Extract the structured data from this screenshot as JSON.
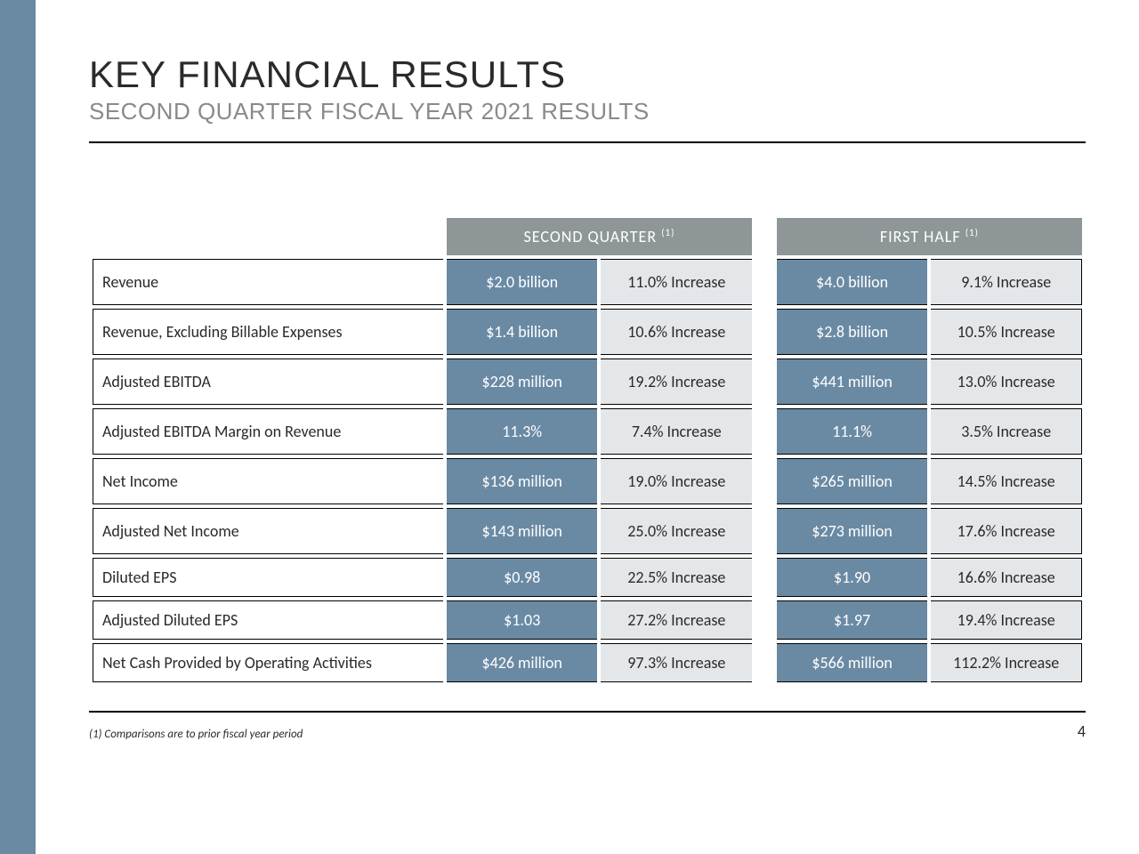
{
  "title": "KEY FINANCIAL RESULTS",
  "subtitle": "SECOND QUARTER FISCAL YEAR 2021 RESULTS",
  "headers": {
    "q2": "SECOND QUARTER",
    "h1": "FIRST HALF",
    "sup": "(1)"
  },
  "rows": [
    {
      "metric": "Revenue",
      "q2_val": "$2.0 billion",
      "q2_chg": "11.0% Increase",
      "h1_val": "$4.0 billion",
      "h1_chg": "9.1% Increase",
      "short": false
    },
    {
      "metric": "Revenue, Excluding Billable Expenses",
      "q2_val": "$1.4 billion",
      "q2_chg": "10.6% Increase",
      "h1_val": "$2.8 billion",
      "h1_chg": "10.5% Increase",
      "short": false
    },
    {
      "metric": "Adjusted EBITDA",
      "q2_val": "$228 million",
      "q2_chg": "19.2% Increase",
      "h1_val": "$441 million",
      "h1_chg": "13.0% Increase",
      "short": false
    },
    {
      "metric": "Adjusted EBITDA Margin on Revenue",
      "q2_val": "11.3%",
      "q2_chg": "7.4% Increase",
      "h1_val": "11.1%",
      "h1_chg": "3.5% Increase",
      "short": false
    },
    {
      "metric": "Net Income",
      "q2_val": "$136 million",
      "q2_chg": "19.0% Increase",
      "h1_val": "$265 million",
      "h1_chg": "14.5% Increase",
      "short": false
    },
    {
      "metric": "Adjusted Net Income",
      "q2_val": "$143 million",
      "q2_chg": "25.0% Increase",
      "h1_val": "$273 million",
      "h1_chg": "17.6% Increase",
      "short": false
    },
    {
      "metric": "Diluted EPS",
      "q2_val": "$0.98",
      "q2_chg": "22.5% Increase",
      "h1_val": "$1.90",
      "h1_chg": "16.6% Increase",
      "short": true
    },
    {
      "metric": "Adjusted Diluted EPS",
      "q2_val": "$1.03",
      "q2_chg": "27.2% Increase",
      "h1_val": "$1.97",
      "h1_chg": "19.4% Increase",
      "short": true
    },
    {
      "metric": "Net Cash Provided by Operating Activities",
      "q2_val": "$426 million",
      "q2_chg": "97.3% Increase",
      "h1_val": "$566 million",
      "h1_chg": "112.2% Increase",
      "short": true
    }
  ],
  "footnote": "(1) Comparisons are to prior fiscal year period",
  "page": "4",
  "colors": {
    "side_bar": "#6a8aa4",
    "header_bg": "#8e9698",
    "cell_blue": "#6a8aa4",
    "cell_grey": "#e4e7ea",
    "text_dark": "#2a2a2a",
    "subtitle": "#8a8a8a"
  }
}
